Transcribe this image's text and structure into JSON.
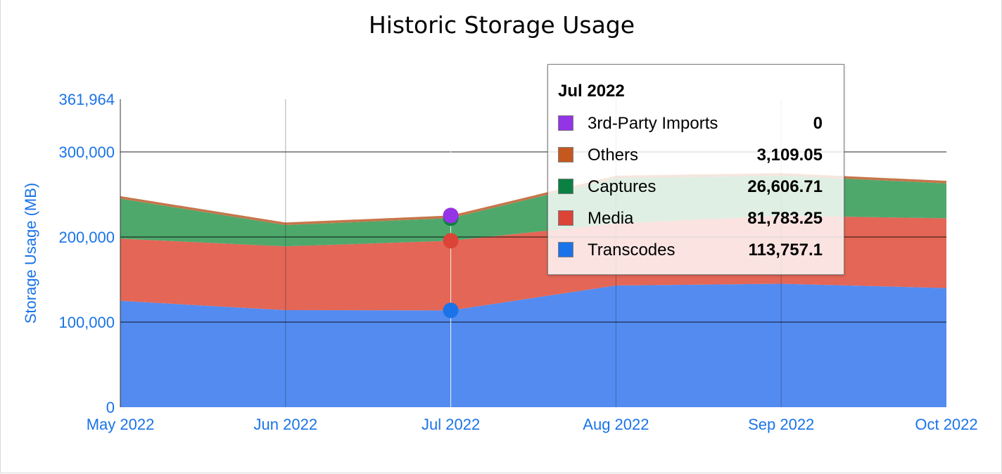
{
  "chart_data": {
    "type": "area",
    "stacked": true,
    "title": "Historic Storage Usage",
    "xlabel": "",
    "ylabel": "Storage Usage (MB)",
    "categories": [
      "May 2022",
      "Jun 2022",
      "Jul 2022",
      "Aug 2022",
      "Sep 2022",
      "Oct 2022"
    ],
    "ylim": [
      0,
      361964
    ],
    "y_ticks": [
      0,
      100000,
      200000,
      300000,
      361964
    ],
    "y_tick_labels": [
      "0",
      "100,000",
      "200,000",
      "300,000",
      "361,964"
    ],
    "grid": true,
    "series": [
      {
        "name": "Transcodes",
        "color": "#538bf0",
        "values": [
          125000,
          114000,
          113757.1,
          143000,
          145000,
          140000
        ]
      },
      {
        "name": "Media",
        "color": "#e36656",
        "values": [
          73000,
          75000,
          81783.25,
          73000,
          80000,
          82000
        ]
      },
      {
        "name": "Captures",
        "color": "#4ea86c",
        "values": [
          47000,
          25000,
          26606.71,
          53000,
          47000,
          41000
        ]
      },
      {
        "name": "Others",
        "color": "#c5764b",
        "values": [
          3000,
          3000,
          3109.05,
          3000,
          3000,
          3000
        ]
      },
      {
        "name": "3rd-Party Imports",
        "color": "#9334e6",
        "values": [
          0,
          0,
          0,
          0,
          0,
          0
        ]
      }
    ],
    "highlight_index": 2
  },
  "tooltip": {
    "title": "Jul 2022",
    "rows": [
      {
        "label": "3rd-Party Imports",
        "value": "0",
        "color": "#9334e6"
      },
      {
        "label": "Others",
        "value": "3,109.05",
        "color": "#c5581f"
      },
      {
        "label": "Captures",
        "value": "26,606.71",
        "color": "#0b8043"
      },
      {
        "label": "Media",
        "value": "81,783.25",
        "color": "#db4437"
      },
      {
        "label": "Transcodes",
        "value": "113,757.1",
        "color": "#1a73e8"
      }
    ]
  }
}
